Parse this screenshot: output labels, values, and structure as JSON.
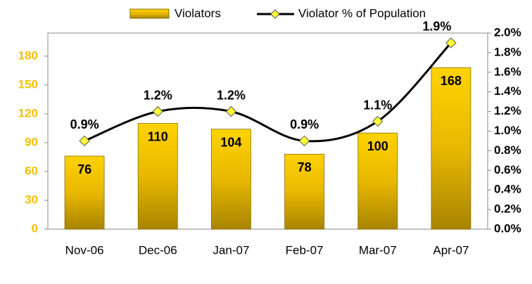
{
  "chart_data": {
    "type": "bar-line",
    "categories": [
      "Nov-06",
      "Dec-06",
      "Jan-07",
      "Feb-07",
      "Mar-07",
      "Apr-07"
    ],
    "series": [
      {
        "name": "Violators",
        "color": "#f2c200",
        "values": [
          76,
          110,
          104,
          78,
          100,
          168
        ]
      },
      {
        "name": "Violator % of Population",
        "color": "#000000",
        "marker_color": "#ffff33",
        "axis": "y2",
        "values": [
          0.9,
          1.2,
          1.2,
          0.9,
          1.1,
          1.9
        ],
        "value_labels": [
          "0.9%",
          "1.2%",
          "1.2%",
          "0.9%",
          "1.1%",
          "1.9%"
        ]
      }
    ],
    "ylim": [
      0,
      204
    ],
    "yticks": [
      0,
      30,
      60,
      90,
      120,
      150,
      180
    ],
    "y2lim": [
      0,
      2
    ],
    "y2ticks": [
      {
        "value": 0,
        "label": "0.0%"
      },
      {
        "value": 0.2,
        "label": "0.2%"
      },
      {
        "value": 0.4,
        "label": "0.4%"
      },
      {
        "value": 0.6,
        "label": "0.6%"
      },
      {
        "value": 0.8,
        "label": "0.8%"
      },
      {
        "value": 1,
        "label": "1.0%"
      },
      {
        "value": 1.2,
        "label": "1.2%"
      },
      {
        "value": 1.4,
        "label": "1.4%"
      },
      {
        "value": 1.6,
        "label": "1.6%"
      },
      {
        "value": 1.8,
        "label": "1.8%"
      },
      {
        "value": 2,
        "label": "2.0%"
      }
    ],
    "legend": "top"
  }
}
